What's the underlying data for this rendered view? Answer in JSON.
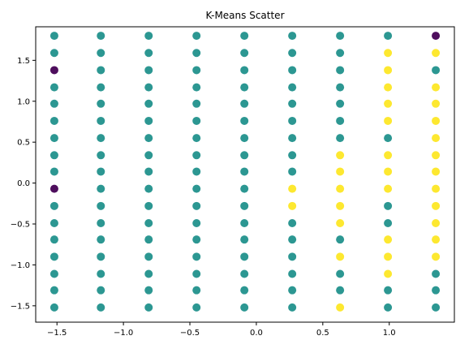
{
  "chart_data": {
    "type": "scatter",
    "title": "K-Means Scatter",
    "xlabel": "",
    "ylabel": "",
    "xlim": [
      -1.66,
      1.49
    ],
    "ylim": [
      -1.7,
      1.91
    ],
    "grid": false,
    "legend": "none",
    "xticks": [
      -1.5,
      -1.0,
      -0.5,
      0.0,
      0.5,
      1.0
    ],
    "xtick_labels": [
      "−1.5",
      "−1.0",
      "−0.5",
      "0.0",
      "0.5",
      "1.0"
    ],
    "yticks": [
      -1.5,
      -1.0,
      -0.5,
      0.0,
      0.5,
      1.0,
      1.5
    ],
    "ytick_labels": [
      "−1.5",
      "−1.0",
      "−0.5",
      "0.0",
      "0.5",
      "1.0",
      "1.5"
    ],
    "grid_x": [
      -1.52,
      -1.17,
      -0.81,
      -0.45,
      -0.09,
      0.27,
      0.63,
      0.99,
      1.35
    ],
    "grid_y": [
      -1.52,
      -1.31,
      -1.11,
      -0.9,
      -0.69,
      -0.49,
      -0.28,
      -0.07,
      0.14,
      0.34,
      0.55,
      0.76,
      0.97,
      1.17,
      1.38,
      1.59,
      1.8
    ],
    "cluster_colors": {
      "0": "#440154",
      "1": "#21918c",
      "2": "#fde725"
    },
    "default_cluster": 1,
    "exceptions": [
      {
        "x": 1.35,
        "y": 1.8,
        "cluster": 0
      },
      {
        "x": -1.52,
        "y": 1.38,
        "cluster": 0
      },
      {
        "x": -1.52,
        "y": -0.07,
        "cluster": 0
      },
      {
        "x": 0.99,
        "y": 1.59,
        "cluster": 2
      },
      {
        "x": 0.99,
        "y": 1.38,
        "cluster": 2
      },
      {
        "x": 0.99,
        "y": 1.17,
        "cluster": 2
      },
      {
        "x": 0.99,
        "y": 0.97,
        "cluster": 2
      },
      {
        "x": 0.99,
        "y": 0.76,
        "cluster": 2
      },
      {
        "x": 0.99,
        "y": 0.34,
        "cluster": 2
      },
      {
        "x": 0.99,
        "y": 0.14,
        "cluster": 2
      },
      {
        "x": 0.99,
        "y": -0.07,
        "cluster": 2
      },
      {
        "x": 0.99,
        "y": -0.69,
        "cluster": 2
      },
      {
        "x": 0.99,
        "y": -0.9,
        "cluster": 2
      },
      {
        "x": 0.99,
        "y": -1.11,
        "cluster": 2
      },
      {
        "x": 1.35,
        "y": 1.59,
        "cluster": 2
      },
      {
        "x": 1.35,
        "y": 1.17,
        "cluster": 2
      },
      {
        "x": 1.35,
        "y": 0.97,
        "cluster": 2
      },
      {
        "x": 1.35,
        "y": 0.76,
        "cluster": 2
      },
      {
        "x": 1.35,
        "y": 0.55,
        "cluster": 2
      },
      {
        "x": 1.35,
        "y": 0.34,
        "cluster": 2
      },
      {
        "x": 1.35,
        "y": 0.14,
        "cluster": 2
      },
      {
        "x": 1.35,
        "y": -0.07,
        "cluster": 2
      },
      {
        "x": 1.35,
        "y": -0.28,
        "cluster": 2
      },
      {
        "x": 1.35,
        "y": -0.49,
        "cluster": 2
      },
      {
        "x": 1.35,
        "y": -0.69,
        "cluster": 2
      },
      {
        "x": 1.35,
        "y": -0.9,
        "cluster": 2
      },
      {
        "x": 0.63,
        "y": 0.34,
        "cluster": 2
      },
      {
        "x": 0.63,
        "y": 0.14,
        "cluster": 2
      },
      {
        "x": 0.63,
        "y": -0.07,
        "cluster": 2
      },
      {
        "x": 0.63,
        "y": -0.28,
        "cluster": 2
      },
      {
        "x": 0.63,
        "y": -0.49,
        "cluster": 2
      },
      {
        "x": 0.63,
        "y": -0.9,
        "cluster": 2
      },
      {
        "x": 0.63,
        "y": -1.52,
        "cluster": 2
      },
      {
        "x": 0.27,
        "y": -0.07,
        "cluster": 2
      },
      {
        "x": 0.27,
        "y": -0.28,
        "cluster": 2
      }
    ]
  }
}
